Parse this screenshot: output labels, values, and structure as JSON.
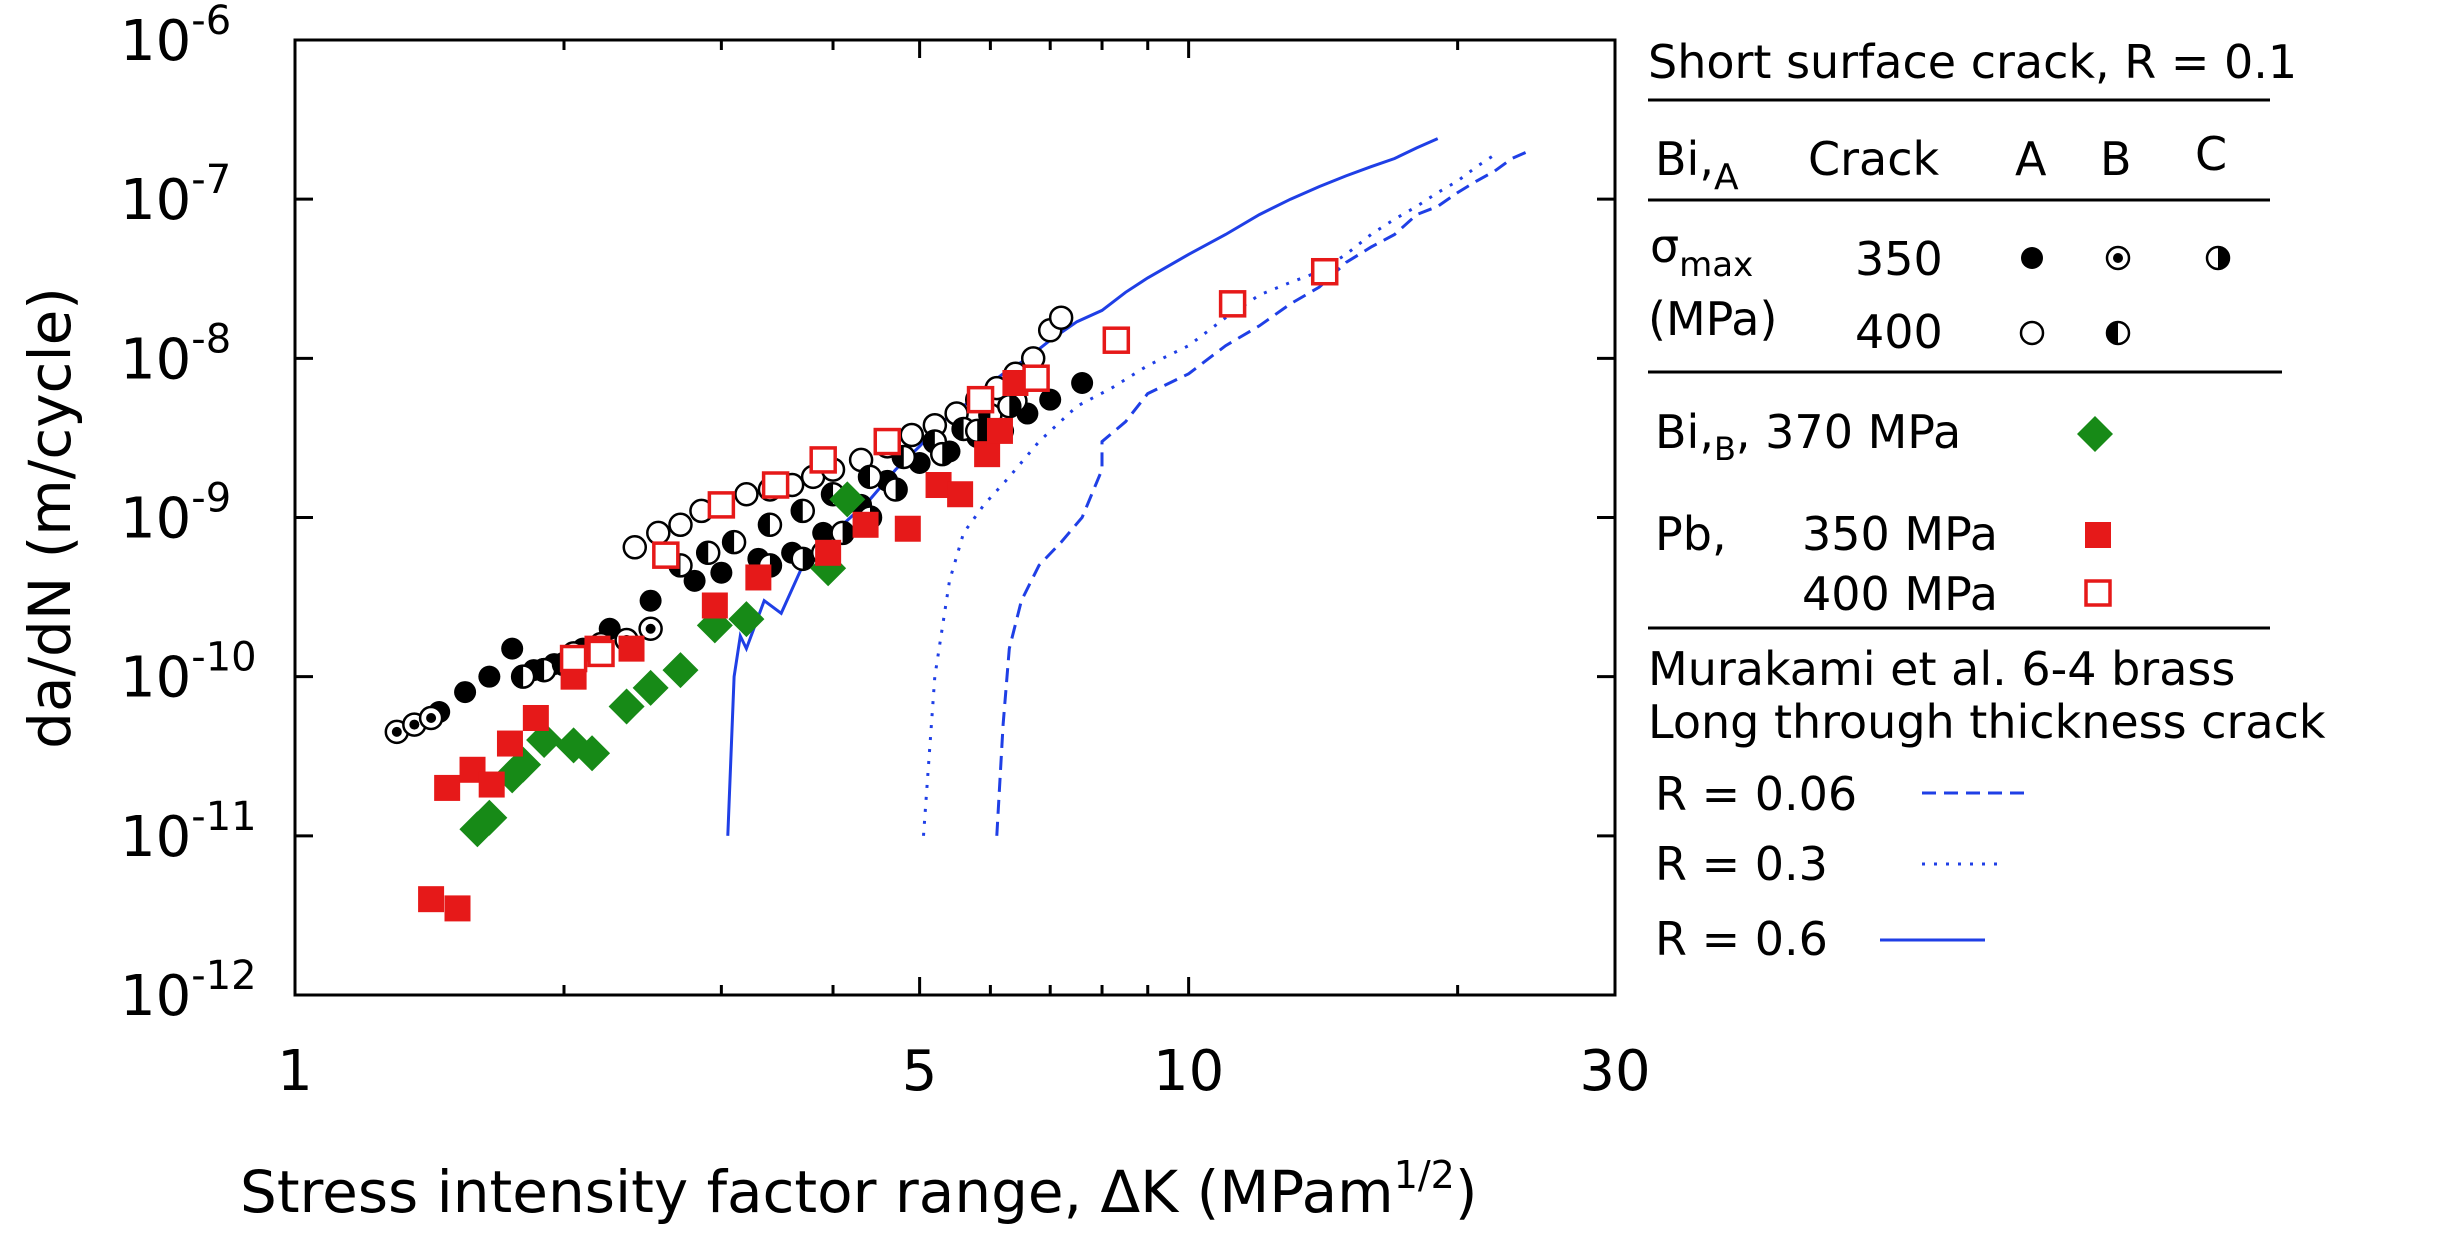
{
  "chart_data": {
    "type": "scatter",
    "title": "",
    "xlabel": "Stress intensity factor range, ΔK (MPam",
    "xlabel_sup": "1/2",
    "xlabel_end": ")",
    "ylabel": "da/dN (m/cycle)",
    "xscale": "log",
    "yscale": "log",
    "xlim": [
      1,
      30
    ],
    "ylim": [
      1e-12,
      1e-06
    ],
    "x_ticks": [
      {
        "value": 1,
        "label": "1"
      },
      {
        "value": 5,
        "label": "5"
      },
      {
        "value": 10,
        "label": "10"
      },
      {
        "value": 30,
        "label": "30"
      }
    ],
    "y_ticks": [
      {
        "value": -12,
        "label": "10",
        "sup": "-12"
      },
      {
        "value": -11,
        "label": "10",
        "sup": "-11"
      },
      {
        "value": -10,
        "label": "10",
        "sup": "-10"
      },
      {
        "value": -9,
        "label": "10",
        "sup": "-9"
      },
      {
        "value": -8,
        "label": "10",
        "sup": "-8"
      },
      {
        "value": -7,
        "label": "10",
        "sup": "-7"
      },
      {
        "value": -6,
        "label": "10",
        "sup": "-6"
      }
    ],
    "series": [
      {
        "name": "Bi,A 350 MPa crack A",
        "marker": "filled-circle",
        "x": [
          1.45,
          1.55,
          1.65,
          1.75,
          1.85,
          1.95,
          2.1,
          2.25,
          2.5,
          2.8,
          3.0,
          3.3,
          3.6,
          3.9,
          4.3,
          4.6,
          5.0,
          5.4,
          5.8,
          6.2,
          6.6,
          7.0,
          7.6
        ],
        "y": [
          6e-11,
          8e-11,
          1e-10,
          1.5e-10,
          1.1e-10,
          1.2e-10,
          1.5e-10,
          2e-10,
          3e-10,
          4e-10,
          4.5e-10,
          5.5e-10,
          6e-10,
          8e-10,
          1.2e-09,
          1.7e-09,
          2.2e-09,
          2.6e-09,
          3.2e-09,
          3.5e-09,
          4.5e-09,
          5.5e-09,
          7e-09
        ]
      },
      {
        "name": "Bi,A 400 MPa crack A",
        "marker": "open-circle",
        "x": [
          2.4,
          2.55,
          2.7,
          2.85,
          3.0,
          3.2,
          3.4,
          3.6,
          3.8,
          4.0,
          4.3,
          4.6,
          4.9,
          5.2,
          5.5,
          5.8,
          6.1,
          6.4,
          6.7,
          7.0,
          7.2
        ],
        "y": [
          6.5e-10,
          8e-10,
          9e-10,
          1.1e-09,
          1.2e-09,
          1.4e-09,
          1.5e-09,
          1.6e-09,
          1.8e-09,
          2e-09,
          2.3e-09,
          2.8e-09,
          3.3e-09,
          3.8e-09,
          4.5e-09,
          5.5e-09,
          6.5e-09,
          8e-09,
          1e-08,
          1.5e-08,
          1.8e-08
        ]
      },
      {
        "name": "Bi,A 350 MPa crack B",
        "marker": "dotted-circle",
        "x": [
          1.3,
          1.36,
          1.42,
          1.9,
          2.05,
          2.2,
          2.35,
          2.5
        ],
        "y": [
          4.5e-11,
          5e-11,
          5.5e-11,
          1.1e-10,
          1.4e-10,
          1.6e-10,
          1.7e-10,
          2e-10
        ]
      },
      {
        "name": "Bi,A 400 MPa crack B",
        "marker": "half-vertical-circle",
        "x": [
          1.8,
          1.9,
          2.0,
          2.7,
          2.9,
          3.1,
          3.4,
          3.7,
          4.0,
          4.4,
          4.8,
          5.2,
          5.6,
          6.0,
          6.4
        ],
        "y": [
          1e-10,
          1.1e-10,
          1.2e-10,
          5e-10,
          6e-10,
          7e-10,
          9e-10,
          1.1e-09,
          1.4e-09,
          1.8e-09,
          2.4e-09,
          3e-09,
          3.6e-09,
          4.4e-09,
          5.4e-09
        ]
      },
      {
        "name": "Bi,A 350 MPa crack C",
        "marker": "half-horizontal-circle",
        "x": [
          3.4,
          3.7,
          3.9,
          4.1,
          4.4,
          4.7,
          5.3,
          5.8,
          6.3
        ],
        "y": [
          5e-10,
          5.5e-10,
          6e-10,
          8e-10,
          1e-09,
          1.5e-09,
          2.5e-09,
          3.5e-09,
          5e-09
        ]
      },
      {
        "name": "Bi,B 370 MPa",
        "marker": "filled-diamond",
        "color": "#178a17",
        "x": [
          1.6,
          1.65,
          1.75,
          1.8,
          1.9,
          2.05,
          2.15,
          2.35,
          2.5,
          2.7,
          2.95,
          3.2,
          3.95,
          4.15
        ],
        "y": [
          1.1e-11,
          1.3e-11,
          2.4e-11,
          2.8e-11,
          4e-11,
          3.7e-11,
          3.3e-11,
          6.5e-11,
          8.5e-11,
          1.1e-10,
          2.1e-10,
          2.3e-10,
          4.8e-10,
          1.3e-09
        ]
      },
      {
        "name": "Pb 350 MPa",
        "marker": "filled-square",
        "color": "#e61919",
        "x": [
          1.42,
          1.48,
          1.52,
          1.58,
          1.66,
          1.74,
          1.86,
          2.05,
          2.18,
          2.38,
          2.95,
          3.3,
          3.95,
          4.35,
          4.85,
          5.25,
          5.55,
          5.95,
          6.15,
          6.4
        ],
        "y": [
          4e-12,
          2e-11,
          3.5e-12,
          2.6e-11,
          2.1e-11,
          3.8e-11,
          5.5e-11,
          1e-10,
          1.5e-10,
          1.5e-10,
          2.8e-10,
          4.2e-10,
          6e-10,
          9e-10,
          8.5e-10,
          1.6e-09,
          1.4e-09,
          2.5e-09,
          3.5e-09,
          7e-09
        ]
      },
      {
        "name": "Pb 400 MPa",
        "marker": "open-square",
        "color": "#e61919",
        "x": [
          2.05,
          2.2,
          2.6,
          3.0,
          3.45,
          3.9,
          4.6,
          5.85,
          6.75,
          8.3,
          11.2,
          14.2
        ],
        "y": [
          1.3e-10,
          1.4e-10,
          5.8e-10,
          1.2e-09,
          1.6e-09,
          2.3e-09,
          3e-09,
          5.5e-09,
          7.5e-09,
          1.3e-08,
          2.2e-08,
          3.5e-08
        ]
      },
      {
        "name": "R = 0.06",
        "style": "dashed",
        "color": "#1f3fe6",
        "x": [
          6.1,
          6.2,
          6.3,
          6.5,
          6.8,
          7.2,
          7.6,
          8.0,
          8.0,
          8.5,
          9.0,
          10,
          11,
          12,
          13,
          14,
          15,
          16,
          17,
          18,
          19,
          20,
          21,
          22,
          23,
          24
        ],
        "y": [
          1e-11,
          5e-11,
          1.5e-10,
          3e-10,
          5e-10,
          7e-10,
          1e-09,
          2e-09,
          3e-09,
          4e-09,
          6e-09,
          8e-09,
          1.2e-08,
          1.6e-08,
          2.2e-08,
          2.8e-08,
          4e-08,
          5e-08,
          6e-08,
          8e-08,
          9e-08,
          1.1e-07,
          1.3e-07,
          1.5e-07,
          1.8e-07,
          2e-07
        ]
      },
      {
        "name": "R = 0.3",
        "style": "dotted",
        "color": "#1f3fe6",
        "x": [
          5.05,
          5.2,
          5.4,
          5.6,
          5.9,
          6.3,
          6.8,
          7.5,
          8.2,
          9.0,
          10,
          11,
          12,
          13,
          14,
          15,
          16,
          17,
          18,
          19,
          20,
          21,
          22
        ],
        "y": [
          1e-11,
          1e-10,
          4e-10,
          8e-10,
          1.2e-09,
          1.8e-09,
          3e-09,
          5e-09,
          6.5e-09,
          9e-09,
          1.2e-08,
          1.8e-08,
          2.5e-08,
          3e-08,
          3.5e-08,
          4.5e-08,
          6e-08,
          7.5e-08,
          9e-08,
          1.1e-07,
          1.3e-07,
          1.6e-07,
          1.9e-07
        ]
      },
      {
        "name": "R = 0.6",
        "style": "solid",
        "color": "#1f3fe6",
        "x": [
          3.05,
          3.1,
          3.15,
          3.2,
          3.35,
          3.5,
          3.7,
          3.9,
          4.1,
          4.4,
          4.7,
          5.0,
          5.3,
          5.6,
          5.9,
          6.2,
          6.6,
          7.0,
          7.5,
          8.0,
          8.5,
          9.0,
          10,
          11,
          12,
          13,
          14,
          15,
          16,
          17,
          18,
          19
        ],
        "y": [
          1e-11,
          1e-10,
          1.8e-10,
          1.5e-10,
          3e-10,
          2.5e-10,
          5e-10,
          7e-10,
          9e-10,
          1.3e-09,
          2e-09,
          2.8e-09,
          4e-09,
          5e-09,
          6.5e-09,
          8e-09,
          1e-08,
          1.3e-08,
          1.7e-08,
          2e-08,
          2.6e-08,
          3.2e-08,
          4.5e-08,
          6e-08,
          8e-08,
          1e-07,
          1.2e-07,
          1.4e-07,
          1.6e-07,
          1.8e-07,
          2.1e-07,
          2.4e-07
        ]
      }
    ],
    "legend": {
      "placement": "right",
      "heading": "Short surface crack,  R = 0.1",
      "col_bi": "Bi,",
      "col_bi_sub": "A",
      "col_crack": "Crack",
      "col_a": "A",
      "col_b": "B",
      "col_c": "C",
      "sigma": "σ",
      "sigma_sub": "max",
      "mpa_unit": "(MPa)",
      "stress_350": "350",
      "stress_400": "400",
      "bib_label_1": "Bi,",
      "bib_sub": "B",
      "bib_label_2": ", 370 MPa",
      "pb_label": "Pb,",
      "pb_350": "350 MPa",
      "pb_400": "400 MPa",
      "murakami_line1": "Murakami et al. 6-4 brass",
      "murakami_line2": "Long through thickness crack",
      "r006": "R = 0.06",
      "r03": "R = 0.3",
      "r06": "R = 0.6"
    }
  },
  "colors": {
    "blue": "#1f3fe6",
    "red": "#e61919",
    "green": "#178a17",
    "black": "#000000"
  }
}
